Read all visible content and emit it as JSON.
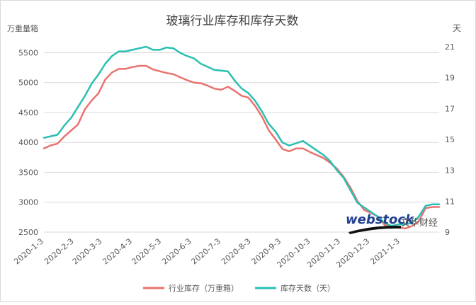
{
  "chart_data": {
    "type": "line",
    "title": "玻璃行业库存和库存天数",
    "ylabel_left": "万重量箱",
    "ylabel_right": "天",
    "xlabel": "",
    "ylim_left": [
      2500,
      5600
    ],
    "yticks_left": [
      2500,
      3000,
      3500,
      4000,
      4500,
      5000,
      5500
    ],
    "ylim_right": [
      9,
      21
    ],
    "yticks_right": [
      9,
      11,
      13,
      15,
      17,
      19,
      21
    ],
    "xlim": [
      "2020-01-03",
      "2021-02-12"
    ],
    "xtick_labels": [
      "2020-1-3",
      "2020-2-3",
      "2020-3-3",
      "2020-4-3",
      "2020-5-3",
      "2020-6-3",
      "2020-7-3",
      "2020-8-3",
      "2020-9-3",
      "2020-10-3",
      "2020-11-3",
      "2020-12-3",
      "2021-1-3"
    ],
    "xtick_dates": [
      "2020-01-03",
      "2020-02-03",
      "2020-03-03",
      "2020-04-03",
      "2020-05-03",
      "2020-06-03",
      "2020-07-03",
      "2020-08-03",
      "2020-09-03",
      "2020-10-03",
      "2020-11-03",
      "2020-12-03",
      "2021-01-03"
    ],
    "grid": true,
    "legend_position": "bottom",
    "colors": {
      "inventory": "#e8736e",
      "days": "#2bbfb2",
      "grid": "#d9d9d9",
      "axis_text": "#595959",
      "title": "#404040"
    },
    "series": [
      {
        "name": "行业库存（万重箱）",
        "axis": "left",
        "x": [
          "2020-01-03",
          "2020-01-10",
          "2020-01-17",
          "2020-01-24",
          "2020-01-31",
          "2020-02-07",
          "2020-02-14",
          "2020-02-21",
          "2020-02-28",
          "2020-03-06",
          "2020-03-13",
          "2020-03-20",
          "2020-03-27",
          "2020-04-03",
          "2020-04-10",
          "2020-04-17",
          "2020-04-24",
          "2020-05-01",
          "2020-05-08",
          "2020-05-15",
          "2020-05-22",
          "2020-05-29",
          "2020-06-05",
          "2020-06-12",
          "2020-06-19",
          "2020-06-26",
          "2020-07-03",
          "2020-07-10",
          "2020-07-17",
          "2020-07-24",
          "2020-07-31",
          "2020-08-07",
          "2020-08-14",
          "2020-08-21",
          "2020-08-28",
          "2020-09-04",
          "2020-09-11",
          "2020-09-18",
          "2020-09-25",
          "2020-10-02",
          "2020-10-09",
          "2020-10-16",
          "2020-10-23",
          "2020-10-30",
          "2020-11-06",
          "2020-11-13",
          "2020-11-20",
          "2020-11-27",
          "2020-12-04",
          "2020-12-11",
          "2020-12-18",
          "2020-12-25",
          "2021-01-01",
          "2021-01-08",
          "2021-01-15",
          "2021-01-22",
          "2021-01-29",
          "2021-02-05",
          "2021-02-12"
        ],
        "values": [
          3900,
          3950,
          3980,
          4100,
          4200,
          4300,
          4550,
          4700,
          4820,
          5050,
          5170,
          5230,
          5230,
          5260,
          5280,
          5280,
          5220,
          5190,
          5160,
          5140,
          5090,
          5040,
          5000,
          4990,
          4950,
          4900,
          4880,
          4930,
          4860,
          4780,
          4750,
          4610,
          4430,
          4200,
          4050,
          3890,
          3850,
          3900,
          3900,
          3840,
          3790,
          3740,
          3660,
          3560,
          3420,
          3240,
          3020,
          2870,
          2820,
          2760,
          2620,
          2580,
          2580,
          2560,
          2600,
          2680,
          2900,
          2920,
          2920
        ]
      },
      {
        "name": "库存天数（天）",
        "axis": "right",
        "x": [
          "2020-01-03",
          "2020-01-10",
          "2020-01-17",
          "2020-01-24",
          "2020-01-31",
          "2020-02-07",
          "2020-02-14",
          "2020-02-21",
          "2020-02-28",
          "2020-03-06",
          "2020-03-13",
          "2020-03-20",
          "2020-03-27",
          "2020-04-03",
          "2020-04-10",
          "2020-04-17",
          "2020-04-24",
          "2020-05-01",
          "2020-05-08",
          "2020-05-15",
          "2020-05-22",
          "2020-05-29",
          "2020-06-05",
          "2020-06-12",
          "2020-06-19",
          "2020-06-26",
          "2020-07-03",
          "2020-07-10",
          "2020-07-17",
          "2020-07-24",
          "2020-07-31",
          "2020-08-07",
          "2020-08-14",
          "2020-08-21",
          "2020-08-28",
          "2020-09-04",
          "2020-09-11",
          "2020-09-18",
          "2020-09-25",
          "2020-10-02",
          "2020-10-09",
          "2020-10-16",
          "2020-10-23",
          "2020-10-30",
          "2020-11-06",
          "2020-11-13",
          "2020-11-20",
          "2020-11-27",
          "2020-12-04",
          "2020-12-11",
          "2020-12-18",
          "2020-12-25",
          "2021-01-01",
          "2021-01-08",
          "2021-01-15",
          "2021-01-22",
          "2021-01-29",
          "2021-02-05",
          "2021-02-12"
        ],
        "values": [
          15.1,
          15.2,
          15.3,
          15.9,
          16.4,
          17.1,
          17.8,
          18.6,
          19.2,
          19.9,
          20.4,
          20.7,
          20.7,
          20.8,
          20.9,
          21.0,
          20.8,
          20.8,
          20.95,
          20.9,
          20.6,
          20.4,
          20.25,
          19.9,
          19.7,
          19.5,
          19.45,
          19.4,
          18.8,
          18.3,
          18.0,
          17.5,
          16.8,
          16.0,
          15.5,
          14.8,
          14.6,
          14.75,
          14.9,
          14.6,
          14.3,
          14.0,
          13.6,
          13.0,
          12.5,
          11.7,
          10.9,
          10.6,
          10.3,
          10.0,
          9.6,
          9.4,
          9.5,
          9.5,
          9.6,
          10.0,
          10.7,
          10.8,
          10.8
        ]
      }
    ]
  },
  "watermark": {
    "brand_latin": "webstock",
    "brand_cn": "文华财经"
  }
}
